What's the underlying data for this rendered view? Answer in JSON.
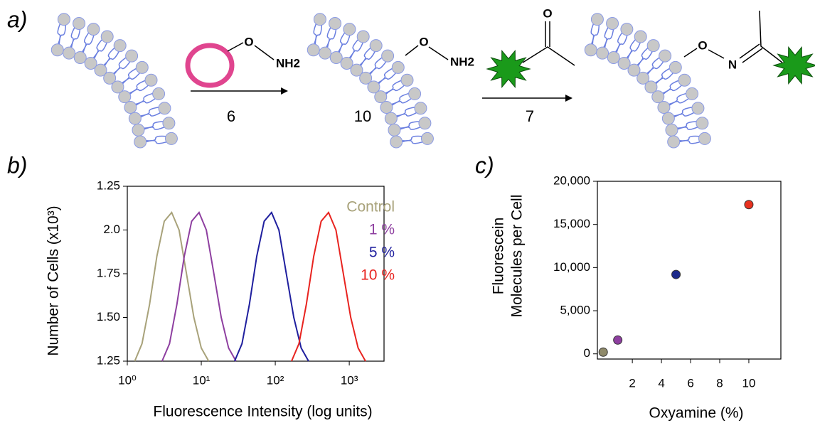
{
  "scheme": {
    "label": "a)",
    "step1_reagent": "6",
    "step1_product": "10",
    "step2_reagent": "7",
    "atoms": {
      "o1": "O",
      "nh2_1": "NH2",
      "o2": "O",
      "nh2_2": "NH2",
      "o3": "O",
      "o4": "O",
      "n4": "N"
    }
  },
  "chart_data": [
    {
      "type": "line",
      "label": "b)",
      "xlabel": "Fluorescence Intensity (log units)",
      "ylabel": "Number of Cells (x10³)",
      "xlog": true,
      "xlim": [
        1,
        2951
      ],
      "xticks": [
        {
          "value": 1,
          "label": "10⁰"
        },
        {
          "value": 10,
          "label": "10¹"
        },
        {
          "value": 100,
          "label": "10²"
        },
        {
          "value": 1000,
          "label": "10³"
        }
      ],
      "ylim": [
        0,
        4
      ],
      "yticks": [
        {
          "value": 0,
          "label": "1.25"
        },
        {
          "value": 1,
          "label": "1.50"
        },
        {
          "value": 2,
          "label": "1.75"
        },
        {
          "value": 3,
          "label": "2.0"
        },
        {
          "value": 4,
          "label": "1.25"
        }
      ],
      "series": [
        {
          "name": "Control",
          "color": "#a8a27a",
          "x": [
            1.26,
            1.58,
            2.0,
            2.51,
            3.16,
            3.98,
            5.01,
            6.31,
            7.94,
            10,
            12.6
          ],
          "values": [
            0,
            0.4,
            1.3,
            2.4,
            3.2,
            3.4,
            3.0,
            2.0,
            1.0,
            0.3,
            0
          ]
        },
        {
          "name": "1 %",
          "color": "#8e3fa0",
          "x": [
            2.95,
            3.72,
            4.68,
            5.89,
            7.41,
            9.33,
            11.7,
            14.8,
            18.6,
            23.4,
            29.5
          ],
          "values": [
            0,
            0.4,
            1.3,
            2.4,
            3.2,
            3.4,
            3.0,
            2.0,
            1.0,
            0.3,
            0
          ]
        },
        {
          "name": "5 %",
          "color": "#1f1f9e",
          "x": [
            28.2,
            35.5,
            44.7,
            56.2,
            70.8,
            89.1,
            112,
            141,
            178,
            224,
            282
          ],
          "values": [
            0,
            0.4,
            1.3,
            2.4,
            3.2,
            3.4,
            3.0,
            2.0,
            1.0,
            0.3,
            0
          ]
        },
        {
          "name": "10 %",
          "color": "#e8231f",
          "x": [
            166,
            209,
            263,
            331,
            417,
            525,
            661,
            832,
            1047,
            1318,
            1660
          ],
          "values": [
            0,
            0.4,
            1.3,
            2.4,
            3.2,
            3.4,
            3.0,
            2.0,
            1.0,
            0.3,
            0
          ]
        }
      ]
    },
    {
      "type": "scatter",
      "label": "c)",
      "xlabel": "Oxyamine (%)",
      "ylabel": [
        "Fluorescein",
        "Molecules per Cell"
      ],
      "x": [
        0,
        1,
        5,
        10
      ],
      "values": [
        200,
        1600,
        9200,
        17300
      ],
      "colors": [
        "#8f8a6a",
        "#8e3fa0",
        "#1d2a8a",
        "#e8311f"
      ],
      "xlim": [
        -0.4,
        12.2
      ],
      "xticks": [
        2,
        4,
        6,
        8,
        10
      ],
      "ylim": [
        -600,
        20000
      ],
      "yticks": [
        0,
        {
          "value": 5000,
          "label": "5,000"
        },
        {
          "value": 10000,
          "label": "10,000"
        },
        {
          "value": 15000,
          "label": "15,000"
        },
        {
          "value": 20000,
          "label": "20,000"
        }
      ]
    }
  ]
}
